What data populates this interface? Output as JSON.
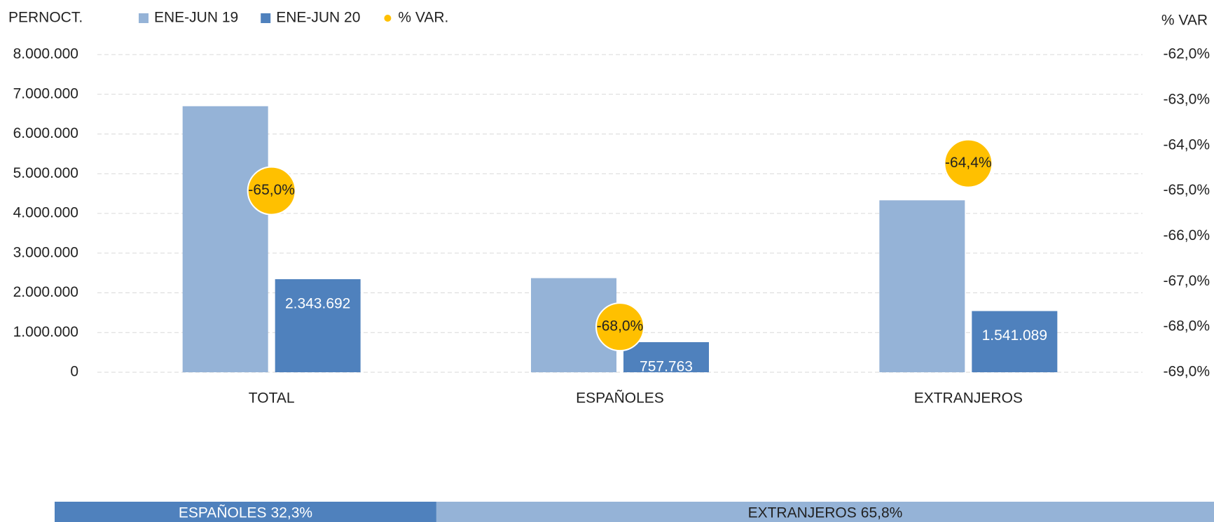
{
  "chart_data": [
    {
      "type": "bar",
      "ylabel": "PERNOCT.",
      "y2label": "% VAR",
      "categories": [
        "TOTAL",
        "ESPAÑOLES",
        "EXTRANJEROS"
      ],
      "series": [
        {
          "name": "ENE-JUN 19",
          "color": "#95b3d7",
          "values": [
            6700000,
            2370000,
            4330000
          ]
        },
        {
          "name": "ENE-JUN 20",
          "color": "#4f81bd",
          "values": [
            2343692,
            757763,
            1541089
          ],
          "value_labels": [
            "2.343.692",
            "757.763",
            "1.541.089"
          ]
        },
        {
          "name": "% VAR.",
          "color": "#ffc000",
          "axis": "y2",
          "values": [
            -65.0,
            -68.0,
            -64.4
          ],
          "value_labels": [
            "-65,0%",
            "-68,0%",
            "-64,4%"
          ]
        }
      ],
      "ylim": [
        0,
        8000000
      ],
      "yticks": [
        0,
        {
          "value": 1000000,
          "label": "1.000.000"
        },
        {
          "value": 2000000,
          "label": "2.000.000"
        },
        {
          "value": 3000000,
          "label": "3.000.000"
        },
        {
          "value": 4000000,
          "label": "4.000.000"
        },
        {
          "value": 5000000,
          "label": "5.000.000"
        },
        {
          "value": 6000000,
          "label": "6.000.000"
        },
        {
          "value": 7000000,
          "label": "7.000.000"
        },
        {
          "value": 8000000,
          "label": "8.000.000"
        }
      ],
      "y2lim": [
        -69,
        -62
      ],
      "y2ticks": [
        {
          "value": -69,
          "label": "-69,0%"
        },
        {
          "value": -68,
          "label": "-68,0%"
        },
        {
          "value": -67,
          "label": "-67,0%"
        },
        {
          "value": -66,
          "label": "-66,0%"
        },
        {
          "value": -65,
          "label": "-65,0%"
        },
        {
          "value": -64,
          "label": "-64,0%"
        },
        {
          "value": -63,
          "label": "-63,0%"
        },
        {
          "value": -62,
          "label": "-62,0%"
        }
      ],
      "grid": true
    },
    {
      "type": "share",
      "series": [
        {
          "name": "ESPAÑOLES",
          "color": "#4f81bd",
          "values": [
            32.3
          ],
          "value_labels": [
            "32,3%"
          ]
        },
        {
          "name": "EXTRANJEROS",
          "color": "#95b3d7",
          "values": [
            65.8
          ],
          "value_labels": [
            "65,8%"
          ]
        }
      ]
    }
  ]
}
